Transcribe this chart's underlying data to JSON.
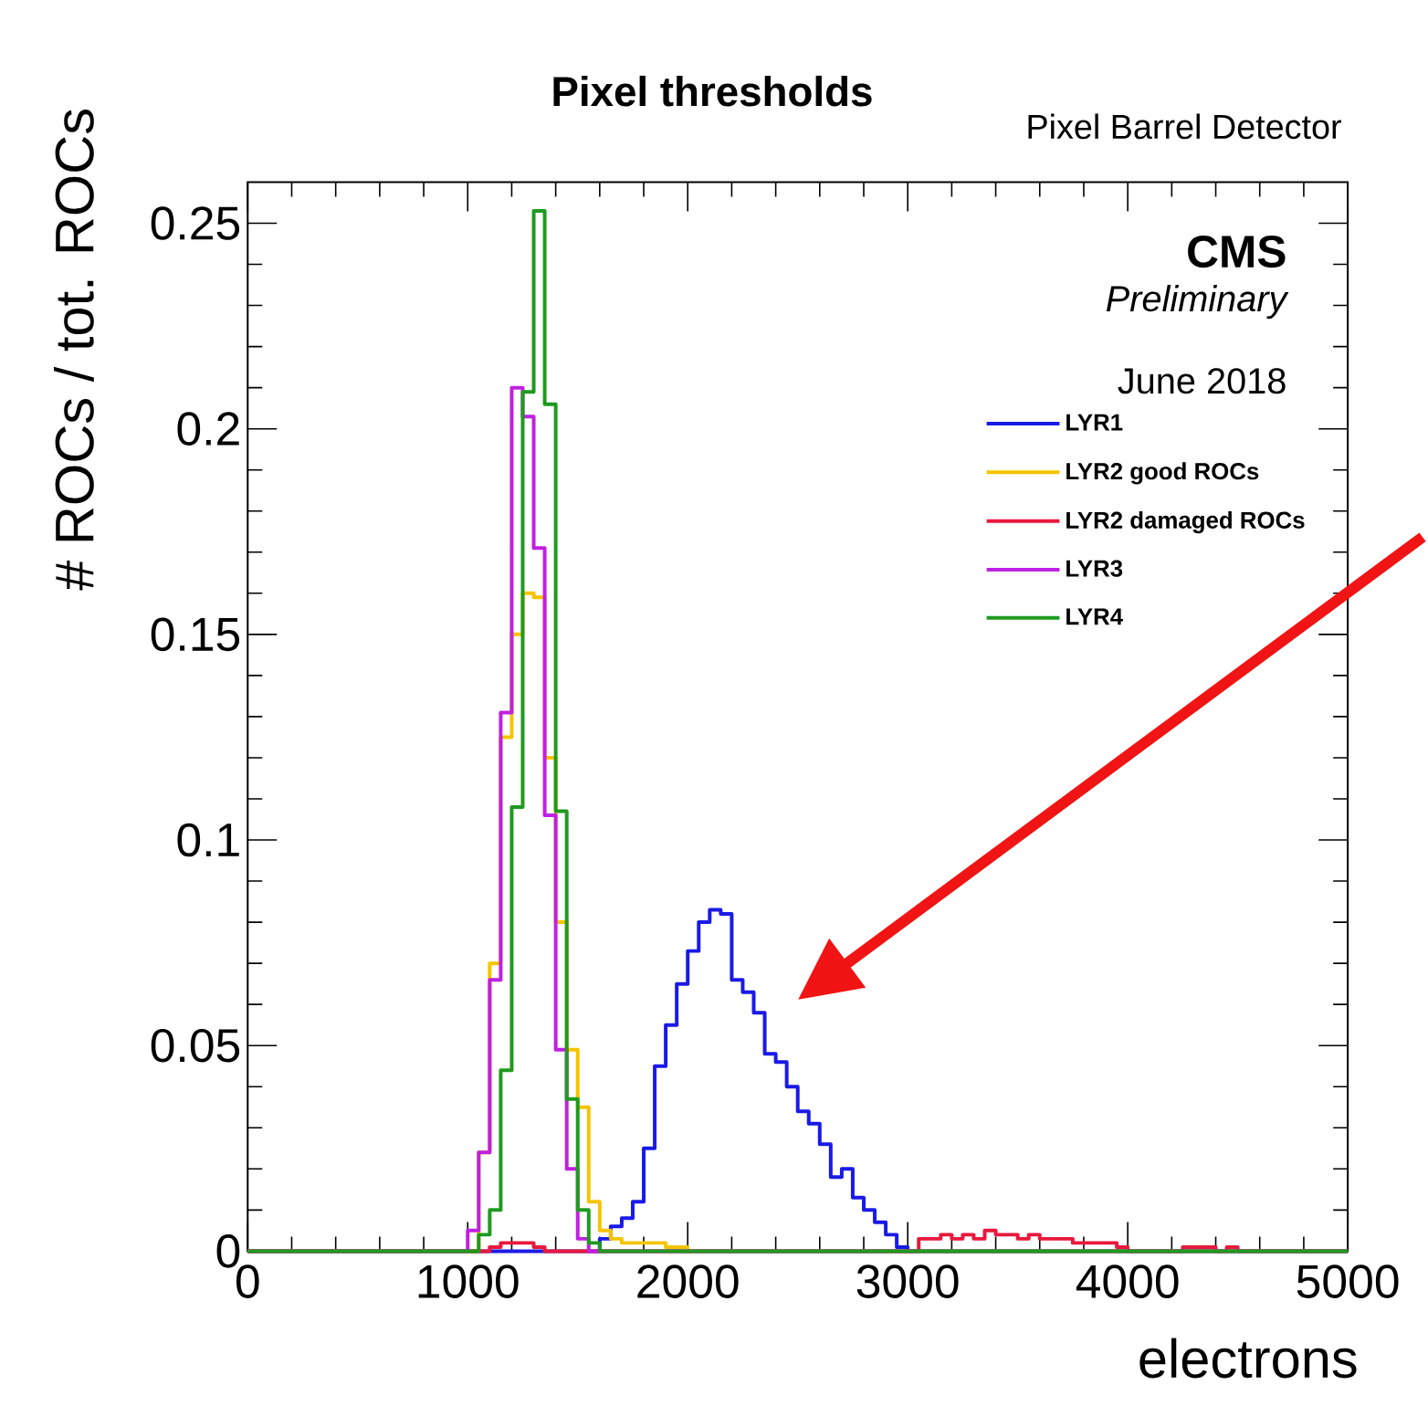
{
  "chart_data": {
    "type": "histogram",
    "title": "Pixel thresholds",
    "xlabel": "electrons",
    "ylabel": "# ROCs / tot. ROCs",
    "annotations": [
      "Pixel Barrel Detector",
      "CMS",
      "Preliminary",
      "June 2018"
    ],
    "bins": [
      0,
      50,
      100,
      150,
      200,
      250,
      300,
      350,
      400,
      450,
      500,
      550,
      600,
      650,
      700,
      750,
      800,
      850,
      900,
      950,
      1000,
      1050,
      1100,
      1150,
      1200,
      1250,
      1300,
      1350,
      1400,
      1450,
      1500,
      1550,
      1600,
      1650,
      1700,
      1750,
      1800,
      1850,
      1900,
      1950,
      2000,
      2050,
      2100,
      2150,
      2200,
      2250,
      2300,
      2350,
      2400,
      2450,
      2500,
      2550,
      2600,
      2650,
      2700,
      2750,
      2800,
      2850,
      2900,
      2950,
      3000,
      3050,
      3100,
      3150,
      3200,
      3250,
      3300,
      3350,
      3400,
      3450,
      3500,
      3550,
      3600,
      3650,
      3700,
      3750,
      3800,
      3850,
      3900,
      3950,
      4000,
      4050,
      4100,
      4150,
      4200,
      4250,
      4300,
      4350,
      4400,
      4450,
      4500,
      4550,
      4600,
      4650,
      4700,
      4750,
      4800,
      4850,
      4900,
      4950,
      5000
    ],
    "series": [
      {
        "name": "LYR1",
        "color": "#1a1ae6",
        "values": [
          0,
          0,
          0,
          0,
          0,
          0,
          0,
          0,
          0,
          0,
          0,
          0,
          0,
          0,
          0,
          0,
          0,
          0,
          0,
          0,
          0,
          0,
          0,
          0,
          0,
          0,
          0,
          0,
          0,
          0,
          0,
          0,
          0.003,
          0.006,
          0.008,
          0.012,
          0.025,
          0.045,
          0.055,
          0.065,
          0.073,
          0.08,
          0.083,
          0.082,
          0.066,
          0.063,
          0.058,
          0.048,
          0.046,
          0.04,
          0.034,
          0.031,
          0.026,
          0.018,
          0.02,
          0.013,
          0.01,
          0.007,
          0.004,
          0.001,
          0,
          0,
          0,
          0,
          0,
          0,
          0,
          0,
          0,
          0,
          0,
          0,
          0,
          0,
          0,
          0,
          0,
          0,
          0,
          0,
          0,
          0,
          0,
          0,
          0,
          0,
          0,
          0,
          0,
          0,
          0,
          0,
          0,
          0,
          0,
          0,
          0,
          0,
          0,
          0
        ]
      },
      {
        "name": "LYR2 good ROCs",
        "color": "#f5c400",
        "values": [
          0,
          0,
          0,
          0,
          0,
          0,
          0,
          0,
          0,
          0,
          0,
          0,
          0,
          0,
          0,
          0,
          0,
          0,
          0,
          0,
          0,
          0.024,
          0.07,
          0.125,
          0.15,
          0.16,
          0.159,
          0.12,
          0.08,
          0.049,
          0.035,
          0.012,
          0.005,
          0.003,
          0.002,
          0.002,
          0.002,
          0.002,
          0.001,
          0.001,
          0,
          0,
          0,
          0,
          0,
          0,
          0,
          0,
          0,
          0,
          0,
          0,
          0,
          0,
          0,
          0,
          0,
          0,
          0,
          0,
          0,
          0,
          0,
          0,
          0,
          0,
          0,
          0,
          0,
          0,
          0,
          0,
          0,
          0,
          0,
          0,
          0,
          0,
          0,
          0,
          0,
          0,
          0,
          0,
          0,
          0,
          0,
          0,
          0,
          0,
          0,
          0,
          0,
          0,
          0,
          0,
          0,
          0,
          0,
          0
        ]
      },
      {
        "name": "LYR2 damaged ROCs",
        "color": "#e8193c",
        "values": [
          0,
          0,
          0,
          0,
          0,
          0,
          0,
          0,
          0,
          0,
          0,
          0,
          0,
          0,
          0,
          0,
          0,
          0,
          0,
          0,
          0,
          0,
          0.001,
          0.002,
          0.002,
          0.002,
          0.001,
          0,
          0,
          0,
          0,
          0,
          0,
          0,
          0,
          0,
          0,
          0,
          0,
          0,
          0,
          0,
          0,
          0,
          0,
          0,
          0,
          0,
          0,
          0,
          0,
          0,
          0,
          0,
          0,
          0,
          0,
          0,
          0,
          0,
          0,
          0.003,
          0.003,
          0.004,
          0.003,
          0.004,
          0.003,
          0.005,
          0.004,
          0.004,
          0.003,
          0.004,
          0.003,
          0.003,
          0.003,
          0.002,
          0.002,
          0.002,
          0.002,
          0.001,
          0,
          0,
          0,
          0,
          0,
          0.001,
          0.001,
          0.001,
          0,
          0.001,
          0,
          0,
          0,
          0,
          0,
          0,
          0,
          0,
          0,
          0
        ]
      },
      {
        "name": "LYR3",
        "color": "#c020e0",
        "values": [
          0,
          0,
          0,
          0,
          0,
          0,
          0,
          0,
          0,
          0,
          0,
          0,
          0,
          0,
          0,
          0,
          0,
          0,
          0,
          0,
          0.005,
          0.024,
          0.066,
          0.131,
          0.21,
          0.203,
          0.171,
          0.106,
          0.049,
          0.02,
          0.003,
          0,
          0,
          0,
          0,
          0,
          0,
          0,
          0,
          0,
          0,
          0,
          0,
          0,
          0,
          0,
          0,
          0,
          0,
          0,
          0,
          0,
          0,
          0,
          0,
          0,
          0,
          0,
          0,
          0,
          0,
          0,
          0,
          0,
          0,
          0,
          0,
          0,
          0,
          0,
          0,
          0,
          0,
          0,
          0,
          0,
          0,
          0,
          0,
          0,
          0,
          0,
          0,
          0,
          0,
          0,
          0,
          0,
          0,
          0,
          0,
          0,
          0,
          0,
          0,
          0,
          0,
          0,
          0,
          0
        ]
      },
      {
        "name": "LYR4",
        "color": "#1f9a1f",
        "values": [
          0,
          0,
          0,
          0,
          0,
          0,
          0,
          0,
          0,
          0,
          0,
          0,
          0,
          0,
          0,
          0,
          0,
          0,
          0,
          0,
          0,
          0.004,
          0.01,
          0.044,
          0.108,
          0.209,
          0.253,
          0.206,
          0.107,
          0.037,
          0.01,
          0.002,
          0,
          0,
          0,
          0,
          0,
          0,
          0,
          0,
          0,
          0,
          0,
          0,
          0,
          0,
          0,
          0,
          0,
          0,
          0,
          0,
          0,
          0,
          0,
          0,
          0,
          0,
          0,
          0,
          0,
          0,
          0,
          0,
          0,
          0,
          0,
          0,
          0,
          0,
          0,
          0,
          0,
          0,
          0,
          0,
          0,
          0,
          0,
          0,
          0,
          0,
          0,
          0,
          0,
          0,
          0,
          0,
          0,
          0,
          0,
          0,
          0,
          0,
          0,
          0,
          0,
          0,
          0,
          0
        ]
      }
    ],
    "xlim": [
      0,
      5000
    ],
    "ylim": [
      0,
      0.26
    ],
    "xticks": [
      0,
      1000,
      2000,
      3000,
      4000,
      5000
    ],
    "yticks": [
      0,
      0.05,
      0.1,
      0.15,
      0.2,
      0.25
    ],
    "legend": "top right"
  }
}
